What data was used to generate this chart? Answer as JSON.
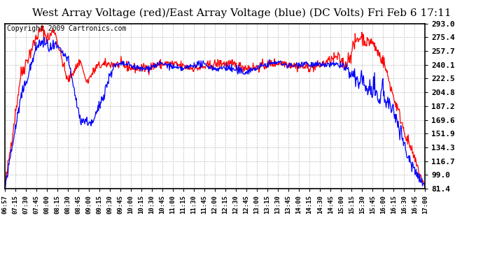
{
  "title": "West Array Voltage (red)/East Array Voltage (blue) (DC Volts) Fri Feb 6 17:11",
  "copyright": "Copyright 2009 Cartronics.com",
  "y_min": 81.4,
  "y_max": 293.0,
  "y_ticks": [
    81.4,
    99.0,
    116.7,
    134.3,
    151.9,
    169.6,
    187.2,
    204.8,
    222.5,
    240.1,
    257.7,
    275.4,
    293.0
  ],
  "x_labels": [
    "06:57",
    "07:15",
    "07:30",
    "07:45",
    "08:00",
    "08:15",
    "08:30",
    "08:45",
    "09:00",
    "09:15",
    "09:30",
    "09:45",
    "10:00",
    "10:15",
    "10:30",
    "10:45",
    "11:00",
    "11:15",
    "11:30",
    "11:45",
    "12:00",
    "12:15",
    "12:30",
    "12:45",
    "13:00",
    "13:15",
    "13:30",
    "13:45",
    "14:00",
    "14:15",
    "14:30",
    "14:45",
    "15:00",
    "15:15",
    "15:30",
    "15:45",
    "16:00",
    "16:15",
    "16:30",
    "16:45",
    "17:00"
  ],
  "background_color": "#ffffff",
  "plot_bg_color": "#ffffff",
  "grid_color": "#aaaaaa",
  "red_color": "#ff0000",
  "blue_color": "#0000ff",
  "title_fontsize": 11,
  "copyright_fontsize": 7
}
